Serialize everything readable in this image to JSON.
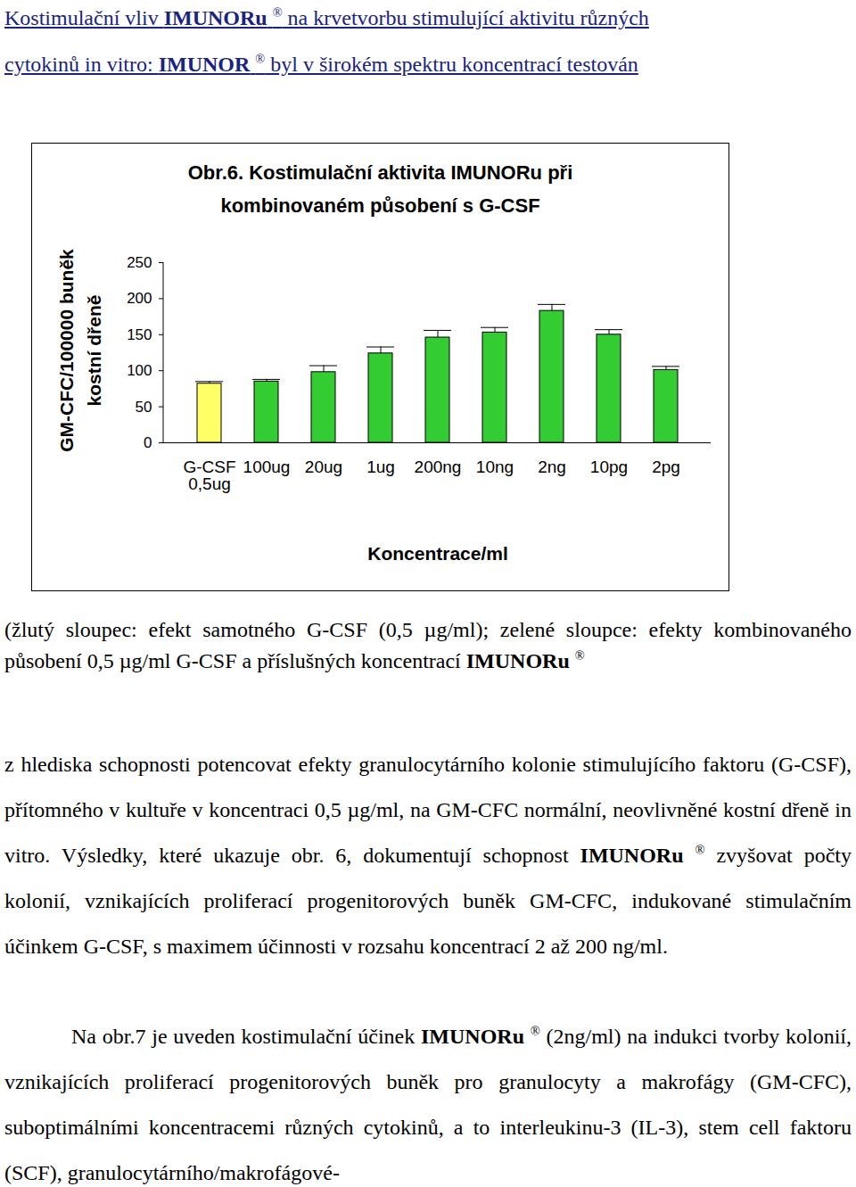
{
  "header": {
    "lines": [
      [
        {
          "text": "Kostimulační vliv "
        },
        {
          "text": "IMUNORu",
          "bold": true
        },
        {
          "text": " "
        },
        {
          "text": "®",
          "sup": true
        },
        {
          "text": " na krvetvorbu stimulující aktivitu různých"
        }
      ],
      [
        {
          "text": "cytokinů in vitro: "
        },
        {
          "text": "IMUNOR",
          "bold": true
        },
        {
          "text": " "
        },
        {
          "text": "®",
          "sup": true
        },
        {
          "text": " byl v širokém spektru koncentrací  testován"
        }
      ]
    ]
  },
  "chart_data": {
    "type": "bar",
    "title": "Obr.6. Kostimulační aktivita IMUNORu při kombinovaném působení s G-CSF",
    "categories": [
      "G-CSF 0,5ug",
      "100ug",
      "20ug",
      "1ug",
      "200ng",
      "10ng",
      "2ng",
      "10pg",
      "2pg"
    ],
    "values": [
      82,
      85,
      98,
      124,
      146,
      153,
      183,
      150,
      101
    ],
    "errors": [
      3,
      3,
      9,
      9,
      10,
      7,
      9,
      7,
      5
    ],
    "colors": [
      "#ffff66",
      "#33cc33",
      "#33cc33",
      "#33cc33",
      "#33cc33",
      "#33cc33",
      "#33cc33",
      "#33cc33",
      "#33cc33"
    ],
    "x_label": "Koncentrace/ml",
    "y_label": "GM-CFC/100000 buněk kostní dřeně",
    "ylim": [
      0,
      250
    ],
    "yticks": [
      0,
      50,
      100,
      150,
      200,
      250
    ],
    "grid": false
  },
  "caption": [
    {
      "text": "(žlutý sloupec: efekt samotného G-CSF (0,5 µg/ml); zelené sloupce: efekty kombinovaného působení 0,5 µg/ml G-CSF a příslušných koncentrací "
    },
    {
      "text": "IMUNORu",
      "bold": true
    },
    {
      "text": " "
    },
    {
      "text": "®",
      "sup": true
    }
  ],
  "paragraphs": [
    [
      {
        "text": "z hlediska schopnosti potencovat efekty granulocytárního kolonie stimulujícího faktoru (G-CSF), přítomného v kultuře v koncentraci 0,5 µg/ml, na GM-CFC normální, neovlivněné kostní dřeně in vitro. Výsledky, které ukazuje obr. 6, dokumentují schopnost "
      },
      {
        "text": "IMUNORu",
        "bold": true
      },
      {
        "text": " "
      },
      {
        "text": "®",
        "sup": true
      },
      {
        "text": " zvyšovat počty kolonií, vznikajících proliferací progenitorových buněk GM-CFC, indukované stimulačním účinkem G-CSF, s maximem účinnosti v rozsahu koncentrací 2 až 200 ng/ml."
      }
    ],
    [
      {
        "text": "Na obr.7 je uveden kostimulační účinek "
      },
      {
        "text": "IMUNORu",
        "bold": true
      },
      {
        "text": " "
      },
      {
        "text": "®",
        "sup": true
      },
      {
        "text": " (2ng/ml) na indukci tvorby kolonií, vznikajících proliferací progenitorových buněk pro granulocyty a makrofágy (GM-CFC), suboptimálními koncentracemi různých cytokinů, a to interleukinu-3 (IL-3), stem cell faktoru (SCF), granulocytárního/makrofágové-"
      }
    ]
  ]
}
